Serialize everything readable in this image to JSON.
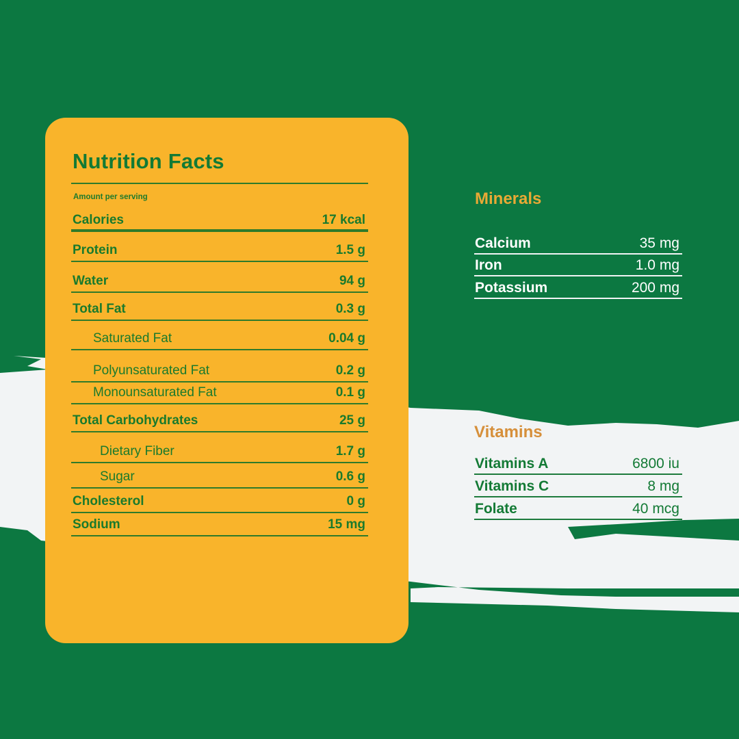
{
  "colors": {
    "background": "#0c7841",
    "card": "#f9b42b",
    "brush": "#f2f4f5",
    "accent_text": "#e8a935",
    "dark_green": "#137a35"
  },
  "nutrition": {
    "title": "Nutrition Facts",
    "amount_per_serving": "Amount per serving",
    "rows": [
      {
        "label": "Calories",
        "value": "17 kcal",
        "level": 0
      },
      {
        "label": "Protein",
        "value": "1.5 g",
        "level": 0
      },
      {
        "label": "Water",
        "value": "94 g",
        "level": 0
      },
      {
        "label": "Total Fat",
        "value": "0.3 g",
        "level": 0
      },
      {
        "label": "Saturated Fat",
        "value": "0.04 g",
        "level": 1
      },
      {
        "label": "Polyunsaturated Fat",
        "value": "0.2 g",
        "level": 1
      },
      {
        "label": "Monounsaturated Fat",
        "value": "0.1 g",
        "level": 1
      },
      {
        "label": "Total Carbohydrates",
        "value": "25 g",
        "level": 0
      },
      {
        "label": "Dietary Fiber",
        "value": "1.7 g",
        "level": 2
      },
      {
        "label": "Sugar",
        "value": "0.6 g",
        "level": 2
      },
      {
        "label": "Cholesterol",
        "value": "0 g",
        "level": 0
      },
      {
        "label": "Sodium",
        "value": "15 mg",
        "level": 0
      }
    ]
  },
  "minerals": {
    "title": "Minerals",
    "rows": [
      {
        "label": "Calcium",
        "value": "35 mg"
      },
      {
        "label": "Iron",
        "value": "1.0 mg"
      },
      {
        "label": "Potassium",
        "value": "200 mg"
      }
    ]
  },
  "vitamins": {
    "title": "Vitamins",
    "rows": [
      {
        "label": "Vitamins A",
        "value": "6800 iu"
      },
      {
        "label": "Vitamins C",
        "value": "8 mg"
      },
      {
        "label": "Folate",
        "value": "40 mcg"
      }
    ]
  }
}
